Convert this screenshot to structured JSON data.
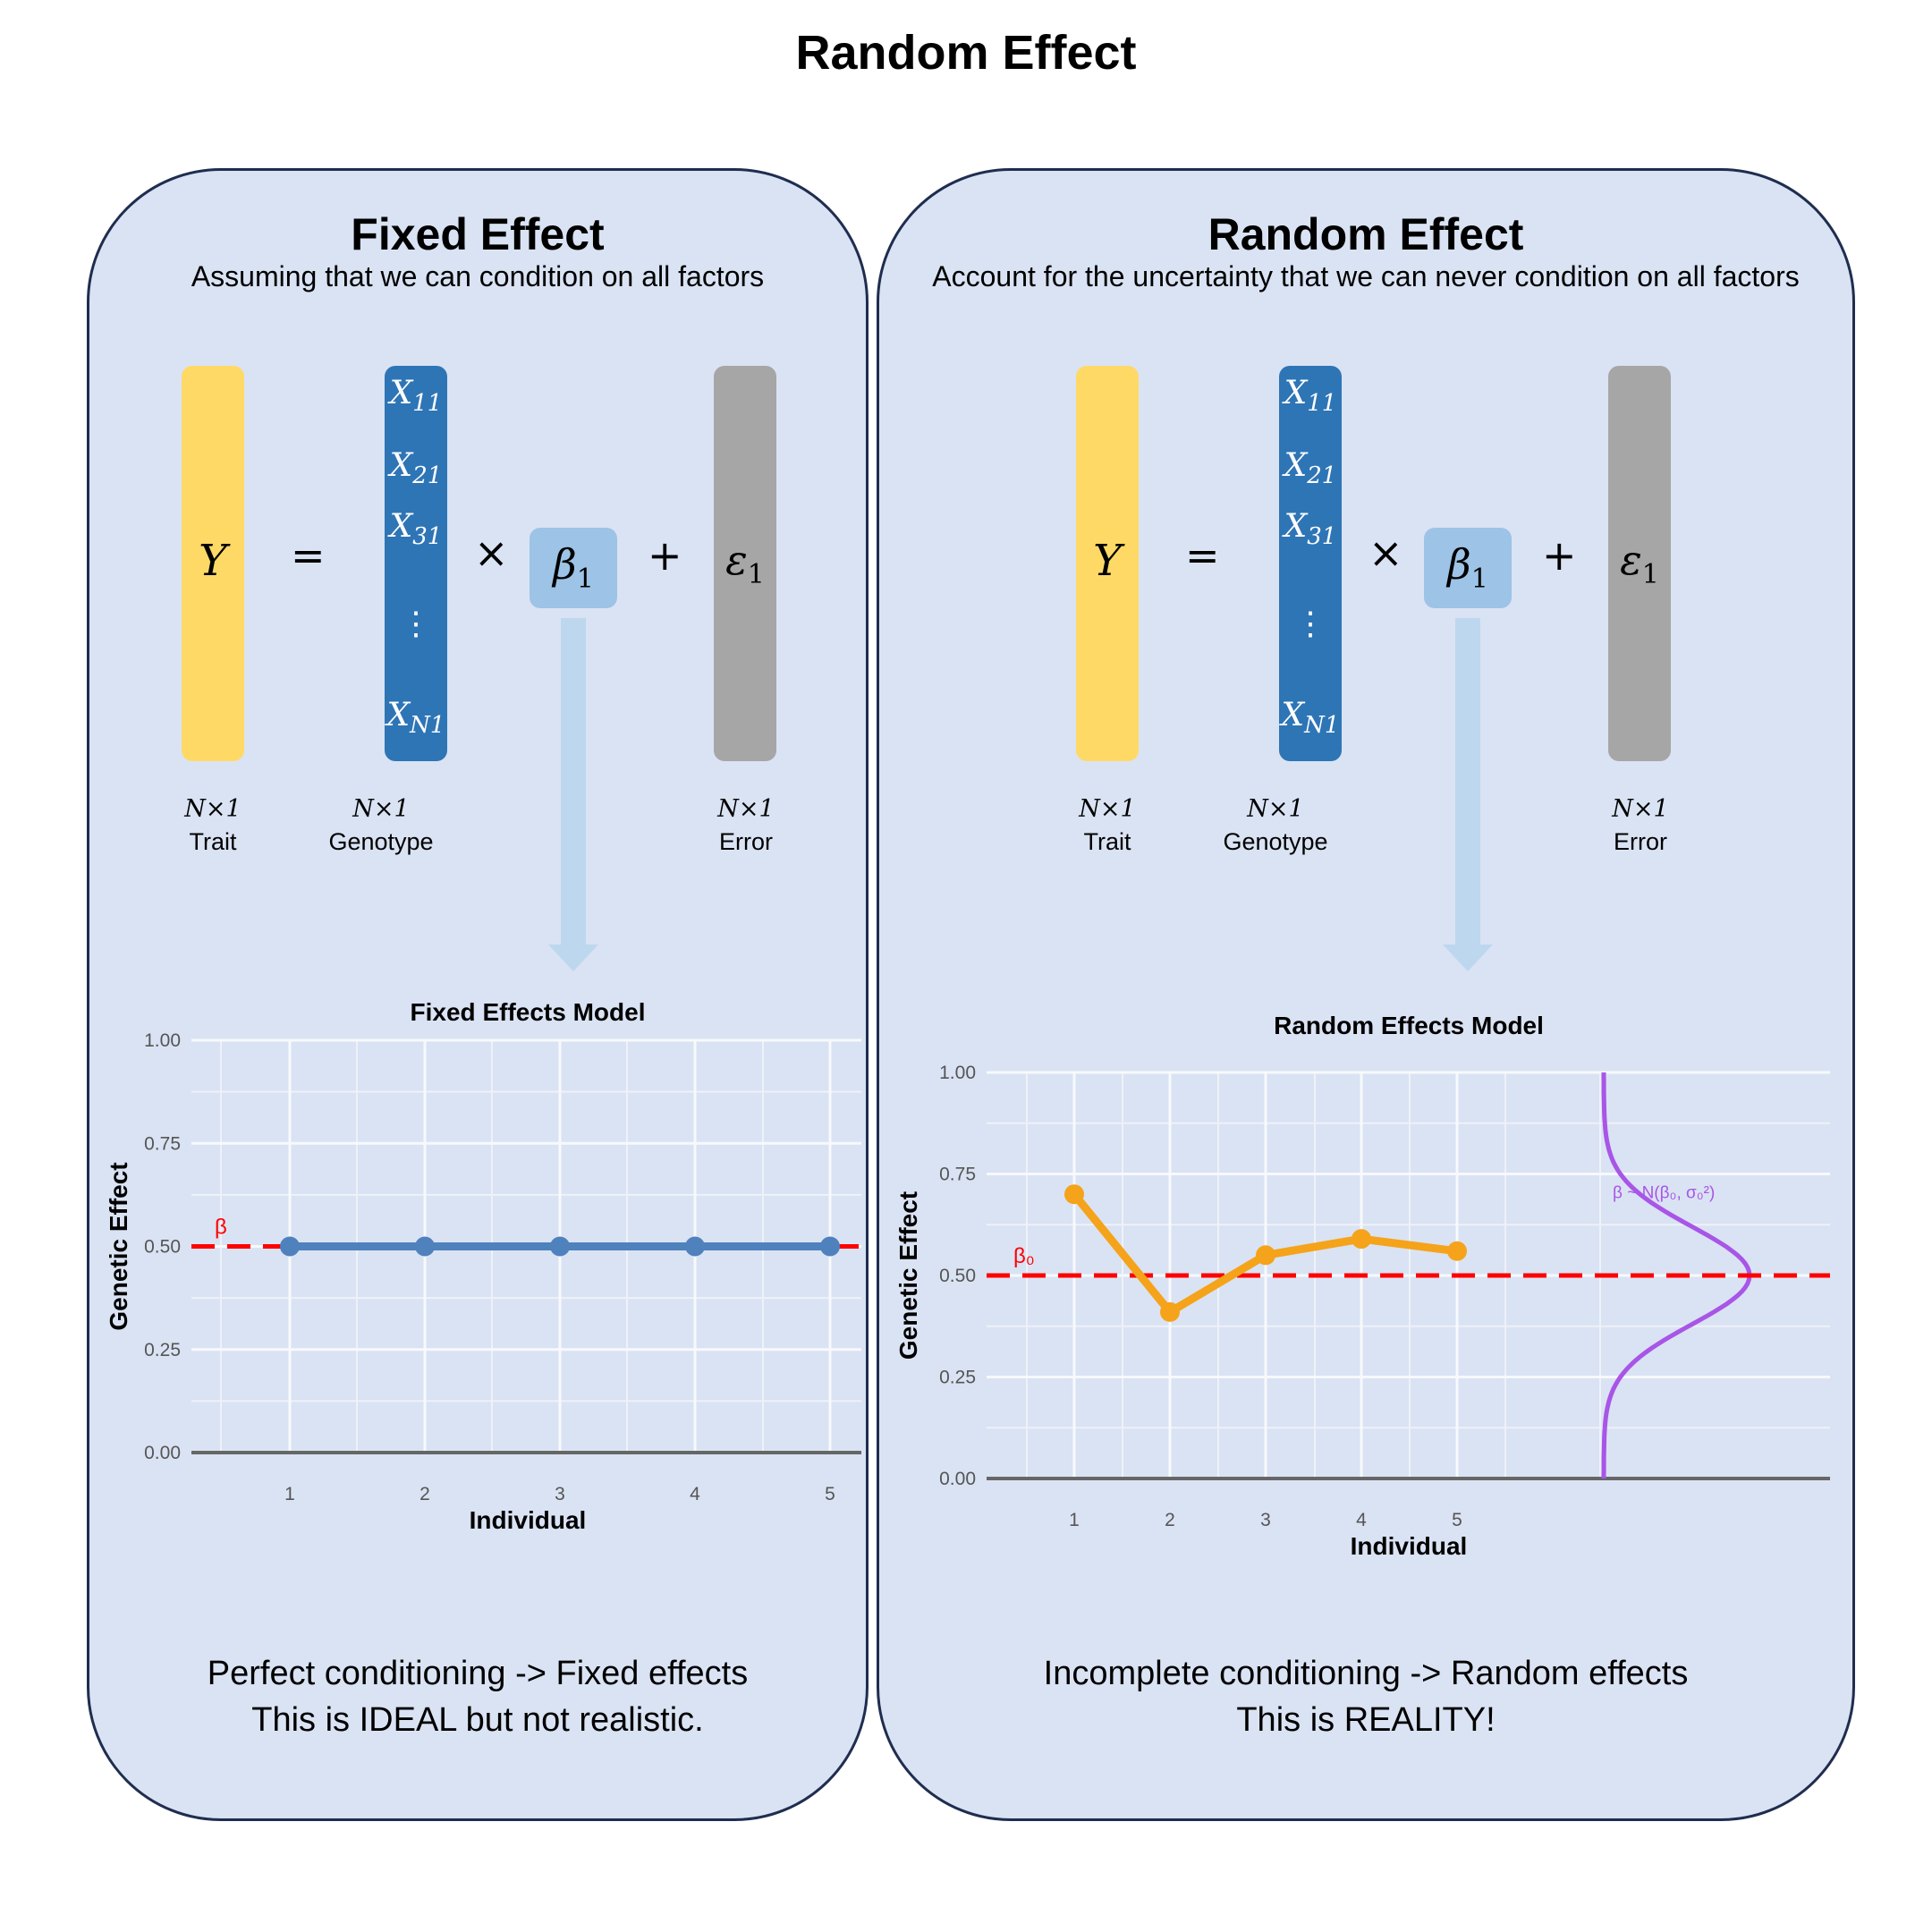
{
  "title": "Random Effect",
  "fixed": {
    "title": "Fixed Effect",
    "subtitle": "Assuming that we can condition on all factors",
    "equation": {
      "y": "Y",
      "eq": "=",
      "times": "×",
      "plus": "+",
      "beta": "β",
      "beta_sub": "1",
      "eps": "ε",
      "eps_sub": "1",
      "x_entries": [
        {
          "base": "X",
          "sub": "11"
        },
        {
          "base": "X",
          "sub": "21"
        },
        {
          "base": "X",
          "sub": "31"
        },
        {
          "base": "⋮",
          "sub": ""
        },
        {
          "base": "X",
          "sub": "N1"
        }
      ]
    },
    "labels": {
      "trait_dim": "N×1",
      "trait": "Trait",
      "geno_dim": "N×1",
      "geno": "Genotype",
      "error_dim": "N×1",
      "error": "Error"
    },
    "footer_line1": "Perfect conditioning -> Fixed effects",
    "footer_line2": "This is IDEAL but not realistic."
  },
  "random": {
    "title": "Random Effect",
    "subtitle": "Account for the uncertainty that we can never condition on all factors",
    "equation": {
      "y": "Y",
      "eq": "=",
      "times": "×",
      "plus": "+",
      "beta": "β",
      "beta_sub": "1",
      "eps": "ε",
      "eps_sub": "1",
      "x_entries": [
        {
          "base": "X",
          "sub": "11"
        },
        {
          "base": "X",
          "sub": "21"
        },
        {
          "base": "X",
          "sub": "31"
        },
        {
          "base": "⋮",
          "sub": ""
        },
        {
          "base": "X",
          "sub": "N1"
        }
      ]
    },
    "labels": {
      "trait_dim": "N×1",
      "trait": "Trait",
      "geno_dim": "N×1",
      "geno": "Genotype",
      "error_dim": "N×1",
      "error": "Error"
    },
    "footer_line1": "Incomplete conditioning -> Random effects",
    "footer_line2": "This is REALITY!"
  },
  "colors": {
    "trait": "#ffd966",
    "genotype": "#2e75b6",
    "beta_box": "#9dc3e6",
    "error": "#a6a6a6",
    "arrow": "#bdd7ee",
    "panel": "#dae3f3",
    "fixed_line": "#4f81bd",
    "random_line": "#f5a31a",
    "reference": "#ff0000",
    "density": "#a855e8"
  },
  "chart_data": [
    {
      "type": "line",
      "title": "Fixed Effects Model",
      "xlabel": "Individual",
      "ylabel": "Genetic Effect",
      "x": [
        1,
        2,
        3,
        4,
        5
      ],
      "values": [
        0.5,
        0.5,
        0.5,
        0.5,
        0.5
      ],
      "ylim": [
        0,
        1
      ],
      "yticks": [
        "0.00",
        "0.25",
        "0.50",
        "0.75",
        "1.00"
      ],
      "xticks": [
        "1",
        "2",
        "3",
        "4",
        "5"
      ],
      "reference": {
        "value": 0.5,
        "label": "β",
        "style": "dashed"
      }
    },
    {
      "type": "line",
      "title": "Random Effects Model",
      "xlabel": "Individual",
      "ylabel": "Genetic Effect",
      "x": [
        1,
        2,
        3,
        4,
        5
      ],
      "values": [
        0.7,
        0.41,
        0.55,
        0.59,
        0.56
      ],
      "ylim": [
        0,
        1
      ],
      "yticks": [
        "0.00",
        "0.25",
        "0.50",
        "0.75",
        "1.00"
      ],
      "xticks": [
        "1",
        "2",
        "3",
        "4",
        "5"
      ],
      "reference": {
        "value": 0.5,
        "label": "β₀",
        "style": "dashed"
      },
      "density": {
        "label": "β ~ N(β₀, σ₀²)",
        "mean": 0.5,
        "sd": 0.12
      }
    }
  ]
}
